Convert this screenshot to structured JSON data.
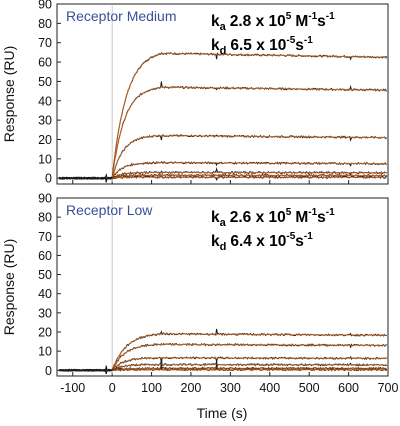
{
  "colors": {
    "data_trace": "#1a1a1a",
    "fit_trace": "#d2691e",
    "panel_label": "#3a4f9a",
    "zero_line": "#bbbbbb"
  },
  "chart_data": [
    {
      "type": "line",
      "panel_label": "Receptor Medium",
      "ylabel": "Response (RU)",
      "xlabel": "",
      "xlim": [
        -140,
        700
      ],
      "ylim": [
        -3,
        90
      ],
      "yticks": [
        0,
        10,
        20,
        30,
        40,
        50,
        60,
        70,
        80,
        90
      ],
      "xticks": [],
      "grid": false,
      "annotation": {
        "ka_symbol": "k",
        "ka_sub": "a",
        "ka_value": "2.8 x 10",
        "ka_exp": "5",
        "ka_unit_a": "M",
        "ka_unit_a_exp": "-1",
        "ka_unit_b": "s",
        "ka_unit_b_exp": "-1",
        "kd_symbol": "k",
        "kd_sub": "d",
        "kd_value": "6.5 x 10",
        "kd_exp": "-5",
        "kd_unit": "s",
        "kd_unit_exp": "-1"
      },
      "injection_start": 0,
      "injection_end": 125,
      "series": [
        {
          "plateau": 64.5,
          "end_value": 62.5
        },
        {
          "plateau": 47,
          "end_value": 45.5
        },
        {
          "plateau": 22,
          "end_value": 21
        },
        {
          "plateau": 8,
          "end_value": 7.5
        },
        {
          "plateau": 3,
          "end_value": 2.8
        },
        {
          "plateau": 1.5,
          "end_value": 1.4
        },
        {
          "plateau": 0.5,
          "end_value": 0.5
        }
      ]
    },
    {
      "type": "line",
      "panel_label": "Receptor Low",
      "ylabel": "Response (RU)",
      "xlabel": "Time (s)",
      "xlim": [
        -140,
        700
      ],
      "ylim": [
        -3,
        90
      ],
      "yticks": [
        0,
        10,
        20,
        30,
        40,
        50,
        60,
        70,
        80,
        90
      ],
      "xticks": [
        -100,
        0,
        100,
        200,
        300,
        400,
        500,
        600,
        700
      ],
      "grid": false,
      "annotation": {
        "ka_symbol": "k",
        "ka_sub": "a",
        "ka_value": "2.6 x 10",
        "ka_exp": "5",
        "ka_unit_a": "M",
        "ka_unit_a_exp": "-1",
        "ka_unit_b": "s",
        "ka_unit_b_exp": "-1",
        "kd_symbol": "k",
        "kd_sub": "d",
        "kd_value": "6.4 x 10",
        "kd_exp": "-5",
        "kd_unit": "s",
        "kd_unit_exp": "-1"
      },
      "injection_start": 0,
      "injection_end": 125,
      "series": [
        {
          "plateau": 19,
          "end_value": 18.3
        },
        {
          "plateau": 13.5,
          "end_value": 13
        },
        {
          "plateau": 6.5,
          "end_value": 6.2
        },
        {
          "plateau": 3,
          "end_value": 2.8
        },
        {
          "plateau": 1,
          "end_value": 1
        },
        {
          "plateau": 0.3,
          "end_value": 0.3
        }
      ]
    }
  ]
}
